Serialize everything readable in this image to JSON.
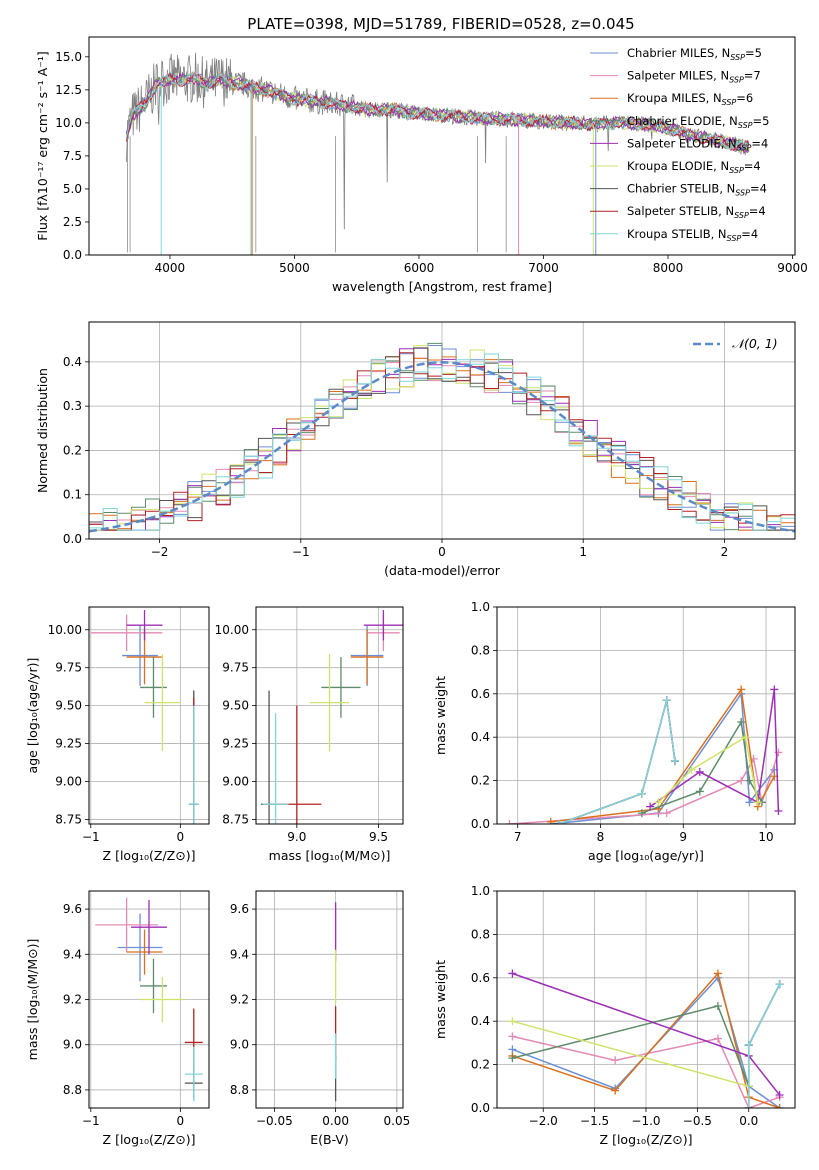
{
  "figure_title": "PLATE=0398, MJD=51789, FIBERID=0528, z=0.045",
  "colors": [
    "#6b8fd6",
    "#e589b5",
    "#d9711e",
    "#5e8c6a",
    "#9d2fb5",
    "#cfe36a",
    "#555555",
    "#b22222",
    "#7fd6db"
  ],
  "chart_data": [
    {
      "id": "spectrum",
      "type": "line",
      "title": "PLATE=0398, MJD=51789, FIBERID=0528, z=0.045",
      "xlabel": "wavelength [Angstrom, rest frame]",
      "ylabel": "Flux [fλ10⁻¹⁷ erg cm⁻² s⁻¹ A⁻¹]",
      "xlim": [
        3350,
        9020
      ],
      "ylim": [
        0,
        16.5
      ],
      "xticks": [
        4000,
        5000,
        6000,
        7000,
        8000,
        9000
      ],
      "yticks": [
        0.0,
        2.5,
        5.0,
        7.5,
        10.0,
        12.5,
        15.0
      ],
      "grid": false,
      "legend_position": "top-right",
      "data_range_x": [
        3650,
        8650
      ],
      "legend": [
        {
          "label": "Chabrier MILES, N",
          "sub": "SSP",
          "suffix": "=5"
        },
        {
          "label": "Salpeter MILES, N",
          "sub": "SSP",
          "suffix": "=7"
        },
        {
          "label": "Kroupa MILES, N",
          "sub": "SSP",
          "suffix": "=6"
        },
        {
          "label": "Chabrier ELODIE, N",
          "sub": "SSP",
          "suffix": "=5"
        },
        {
          "label": "Salpeter ELODIE, N",
          "sub": "SSP",
          "suffix": "=4"
        },
        {
          "label": "Kroupa ELODIE, N",
          "sub": "SSP",
          "suffix": "=4"
        },
        {
          "label": "Chabrier STELIB, N",
          "sub": "SSP",
          "suffix": "=4"
        },
        {
          "label": "Salpeter STELIB, N",
          "sub": "SSP",
          "suffix": "=4"
        },
        {
          "label": "Kroupa STELIB, N",
          "sub": "SSP",
          "suffix": "=4"
        }
      ],
      "continuum": [
        [
          3650,
          9.0
        ],
        [
          3700,
          10.5
        ],
        [
          3800,
          11.5
        ],
        [
          3900,
          13.0
        ],
        [
          4000,
          13.3
        ],
        [
          4100,
          13.2
        ],
        [
          4200,
          13.4
        ],
        [
          4300,
          12.9
        ],
        [
          4400,
          13.3
        ],
        [
          4500,
          13.0
        ],
        [
          4600,
          12.9
        ],
        [
          4700,
          12.6
        ],
        [
          4800,
          12.4
        ],
        [
          4900,
          12.1
        ],
        [
          5000,
          11.8
        ],
        [
          5200,
          11.6
        ],
        [
          5400,
          11.3
        ],
        [
          5600,
          11.0
        ],
        [
          5800,
          11.0
        ],
        [
          6000,
          10.7
        ],
        [
          6200,
          10.6
        ],
        [
          6400,
          10.4
        ],
        [
          6600,
          10.3
        ],
        [
          6800,
          10.2
        ],
        [
          7000,
          10.1
        ],
        [
          7200,
          10.0
        ],
        [
          7400,
          9.9
        ],
        [
          7600,
          10.0
        ],
        [
          7800,
          9.9
        ],
        [
          8000,
          9.6
        ],
        [
          8200,
          9.0
        ],
        [
          8400,
          8.7
        ],
        [
          8600,
          8.2
        ],
        [
          8650,
          8.1
        ]
      ]
    },
    {
      "id": "residuals",
      "type": "line",
      "xlabel": "(data-model)/error",
      "ylabel": "Normed distribution",
      "xlim": [
        -2.5,
        2.5
      ],
      "ylim": [
        0,
        0.49
      ],
      "xticks": [
        -2,
        -1,
        0,
        1,
        2
      ],
      "yticks": [
        0.0,
        0.1,
        0.2,
        0.3,
        0.4
      ],
      "grid": true,
      "legend_position": "top-right",
      "legend": [
        {
          "label": "𝒩(0, 1)"
        }
      ],
      "curve": {
        "mean": 0,
        "sigma": 1
      }
    },
    {
      "id": "z-age",
      "type": "scatter",
      "xlabel": "Z [log₁₀(Z/Z⊙)]",
      "ylabel": "age  [log₁₀(age/yr)]",
      "xlim": [
        -1.02,
        0.32
      ],
      "ylim": [
        8.72,
        10.15
      ],
      "xticks": [
        -1,
        0
      ],
      "yticks": [
        8.75,
        9.0,
        9.25,
        9.5,
        9.75,
        10.0
      ],
      "grid": true,
      "points": [
        {
          "s": 0,
          "x": -0.45,
          "y": 9.83,
          "xerr": 0.2,
          "yerr": 0.2
        },
        {
          "s": 1,
          "x": -0.6,
          "y": 9.98,
          "xerr": 0.4,
          "yerr": 0.12
        },
        {
          "s": 2,
          "x": -0.4,
          "y": 9.82,
          "xerr": 0.2,
          "yerr": 0.18
        },
        {
          "s": 3,
          "x": -0.3,
          "y": 9.62,
          "xerr": 0.15,
          "yerr": 0.2
        },
        {
          "s": 4,
          "x": -0.4,
          "y": 10.03,
          "xerr": 0.2,
          "yerr": 0.1
        },
        {
          "s": 5,
          "x": -0.2,
          "y": 9.52,
          "xerr": 0.2,
          "yerr": 0.32
        },
        {
          "s": 6,
          "x": 0.15,
          "y": 8.85,
          "xerr": 0.05,
          "yerr": 0.75
        },
        {
          "s": 7,
          "x": 0.15,
          "y": 8.85,
          "xerr": 0.05,
          "yerr": 0.7
        },
        {
          "s": 8,
          "x": 0.15,
          "y": 8.85,
          "xerr": 0.06,
          "yerr": 0.65
        }
      ]
    },
    {
      "id": "mass-age",
      "type": "scatter",
      "xlabel": "mass [log₁₀(M/M⊙)]",
      "ylabel": "",
      "xlim": [
        8.75,
        9.65
      ],
      "ylim": [
        8.72,
        10.15
      ],
      "xticks": [
        9.0,
        9.5
      ],
      "yticks": [
        8.75,
        9.0,
        9.25,
        9.5,
        9.75,
        10.0
      ],
      "grid": true,
      "points": [
        {
          "s": 0,
          "x": 9.43,
          "y": 9.83,
          "xerr": 0.1,
          "yerr": 0.2
        },
        {
          "s": 1,
          "x": 9.53,
          "y": 9.98,
          "xerr": 0.1,
          "yerr": 0.12
        },
        {
          "s": 2,
          "x": 9.43,
          "y": 9.82,
          "xerr": 0.1,
          "yerr": 0.18
        },
        {
          "s": 3,
          "x": 9.27,
          "y": 9.62,
          "xerr": 0.12,
          "yerr": 0.2
        },
        {
          "s": 4,
          "x": 9.53,
          "y": 10.03,
          "xerr": 0.12,
          "yerr": 0.1
        },
        {
          "s": 5,
          "x": 9.2,
          "y": 9.52,
          "xerr": 0.12,
          "yerr": 0.32
        },
        {
          "s": 6,
          "x": 8.83,
          "y": 8.85,
          "xerr": 0.05,
          "yerr": 0.75
        },
        {
          "s": 7,
          "x": 9.0,
          "y": 8.85,
          "xerr": 0.15,
          "yerr": 0.65
        },
        {
          "s": 8,
          "x": 8.87,
          "y": 8.85,
          "xerr": 0.08,
          "yerr": 0.6
        }
      ]
    },
    {
      "id": "age-weight",
      "type": "line",
      "xlabel": "age  [log₁₀(age/yr)]",
      "ylabel": "mass weight",
      "xlim": [
        6.75,
        10.35
      ],
      "ylim": [
        0,
        1.0
      ],
      "xticks": [
        7,
        8,
        9,
        10
      ],
      "yticks": [
        0.0,
        0.2,
        0.4,
        0.6,
        0.8,
        1.0
      ],
      "grid": true,
      "series": [
        {
          "s": 0,
          "x": [
            7.4,
            8.7,
            9.7,
            9.8,
            10.1
          ],
          "y": [
            0.0,
            0.05,
            0.6,
            0.1,
            0.25
          ]
        },
        {
          "s": 1,
          "x": [
            6.9,
            8.8,
            9.7,
            9.85,
            9.95,
            10.15
          ],
          "y": [
            0.0,
            0.05,
            0.2,
            0.3,
            0.1,
            0.33
          ]
        },
        {
          "s": 2,
          "x": [
            7.4,
            8.7,
            9.7,
            9.9,
            10.1
          ],
          "y": [
            0.01,
            0.07,
            0.62,
            0.08,
            0.22
          ]
        },
        {
          "s": 3,
          "x": [
            8.5,
            9.2,
            9.7,
            9.8,
            9.95
          ],
          "y": [
            0.05,
            0.15,
            0.47,
            0.2,
            0.1
          ]
        },
        {
          "s": 4,
          "x": [
            8.6,
            9.2,
            9.9,
            10.1,
            10.15
          ],
          "y": [
            0.08,
            0.24,
            0.1,
            0.62,
            0.06
          ]
        },
        {
          "s": 5,
          "x": [
            8.7,
            9.1,
            9.75,
            9.9
          ],
          "y": [
            0.1,
            0.25,
            0.4,
            0.1
          ]
        },
        {
          "s": 6,
          "x": [
            7.5,
            8.5,
            8.8,
            8.9
          ],
          "y": [
            0.0,
            0.14,
            0.57,
            0.29
          ]
        },
        {
          "s": 7,
          "x": [
            7.5,
            8.5,
            8.8,
            8.9
          ],
          "y": [
            0.0,
            0.14,
            0.57,
            0.29
          ]
        },
        {
          "s": 8,
          "x": [
            7.5,
            8.5,
            8.8,
            8.9
          ],
          "y": [
            0.0,
            0.14,
            0.57,
            0.29
          ]
        }
      ]
    },
    {
      "id": "z-mass",
      "type": "scatter",
      "xlabel": "Z [log₁₀(Z/Z⊙)]",
      "ylabel": "mass [log₁₀(M/M⊙)]",
      "xlim": [
        -1.02,
        0.32
      ],
      "ylim": [
        8.72,
        9.68
      ],
      "xticks": [
        -1,
        0
      ],
      "yticks": [
        8.8,
        9.0,
        9.2,
        9.4,
        9.6
      ],
      "grid": true,
      "points": [
        {
          "s": 0,
          "x": -0.45,
          "y": 9.43,
          "xerr": 0.25,
          "yerr": 0.15
        },
        {
          "s": 1,
          "x": -0.6,
          "y": 9.53,
          "xerr": 0.35,
          "yerr": 0.12
        },
        {
          "s": 2,
          "x": -0.4,
          "y": 9.41,
          "xerr": 0.2,
          "yerr": 0.1
        },
        {
          "s": 3,
          "x": -0.3,
          "y": 9.26,
          "xerr": 0.15,
          "yerr": 0.12
        },
        {
          "s": 4,
          "x": -0.35,
          "y": 9.52,
          "xerr": 0.2,
          "yerr": 0.12
        },
        {
          "s": 5,
          "x": -0.2,
          "y": 9.2,
          "xerr": 0.25,
          "yerr": 0.1
        },
        {
          "s": 6,
          "x": 0.15,
          "y": 8.83,
          "xerr": 0.1,
          "yerr": 0.07
        },
        {
          "s": 7,
          "x": 0.15,
          "y": 9.01,
          "xerr": 0.1,
          "yerr": 0.15
        },
        {
          "s": 8,
          "x": 0.15,
          "y": 8.87,
          "xerr": 0.1,
          "yerr": 0.12
        }
      ]
    },
    {
      "id": "ebv-mass",
      "type": "scatter",
      "xlabel": "E(B-V)",
      "ylabel": "",
      "xlim": [
        -0.065,
        0.055
      ],
      "ylim": [
        8.72,
        9.68
      ],
      "xticks": [
        -0.05,
        0.0,
        0.05
      ],
      "yticks": [
        8.8,
        9.0,
        9.2,
        9.4,
        9.6
      ],
      "grid": true,
      "points": [
        {
          "s": 4,
          "x": 0.0,
          "y": 9.5,
          "xerr": 0.0,
          "yerr": 0.13
        },
        {
          "s": 5,
          "x": 0.0,
          "y": 9.3,
          "xerr": 0.0,
          "yerr": 0.12
        },
        {
          "s": 7,
          "x": 0.0,
          "y": 9.05,
          "xerr": 0.0,
          "yerr": 0.12
        },
        {
          "s": 6,
          "x": 0.0,
          "y": 8.85,
          "xerr": 0.0,
          "yerr": 0.1
        },
        {
          "s": 8,
          "x": 0.0,
          "y": 8.95,
          "xerr": 0.0,
          "yerr": 0.1
        }
      ]
    },
    {
      "id": "z-weight",
      "type": "line",
      "xlabel": "Z [log₁₀(Z/Z⊙)]",
      "ylabel": "mass weight",
      "xlim": [
        -2.45,
        0.45
      ],
      "ylim": [
        0,
        1.0
      ],
      "xticks": [
        -2.0,
        -1.5,
        -1.0,
        -0.5,
        0.0
      ],
      "yticks": [
        0.0,
        0.2,
        0.4,
        0.6,
        0.8,
        1.0
      ],
      "grid": true,
      "series": [
        {
          "s": 0,
          "x": [
            -2.3,
            -1.3,
            -0.3,
            0.0,
            0.3
          ],
          "y": [
            0.27,
            0.09,
            0.6,
            0.1,
            0.0
          ]
        },
        {
          "s": 1,
          "x": [
            -2.3,
            -1.3,
            -0.3,
            0.0,
            0.3
          ],
          "y": [
            0.33,
            0.22,
            0.32,
            0.0,
            0.05
          ]
        },
        {
          "s": 2,
          "x": [
            -2.3,
            -1.3,
            -0.3,
            0.0,
            0.3
          ],
          "y": [
            0.24,
            0.08,
            0.62,
            0.05,
            0.0
          ]
        },
        {
          "s": 3,
          "x": [
            -2.3,
            -0.3,
            0.0
          ],
          "y": [
            0.23,
            0.47,
            0.1
          ]
        },
        {
          "s": 4,
          "x": [
            -2.3,
            0.0,
            0.3
          ],
          "y": [
            0.62,
            0.24,
            0.06
          ]
        },
        {
          "s": 5,
          "x": [
            -2.3,
            0.0
          ],
          "y": [
            0.4,
            0.1
          ]
        },
        {
          "s": 6,
          "x": [
            0.0,
            0.0,
            0.3
          ],
          "y": [
            0.0,
            0.29,
            0.57
          ]
        },
        {
          "s": 7,
          "x": [
            0.0,
            0.0,
            0.3
          ],
          "y": [
            0.0,
            0.29,
            0.57
          ]
        },
        {
          "s": 8,
          "x": [
            0.0,
            0.0,
            0.3
          ],
          "y": [
            0.0,
            0.29,
            0.57
          ]
        }
      ]
    }
  ]
}
